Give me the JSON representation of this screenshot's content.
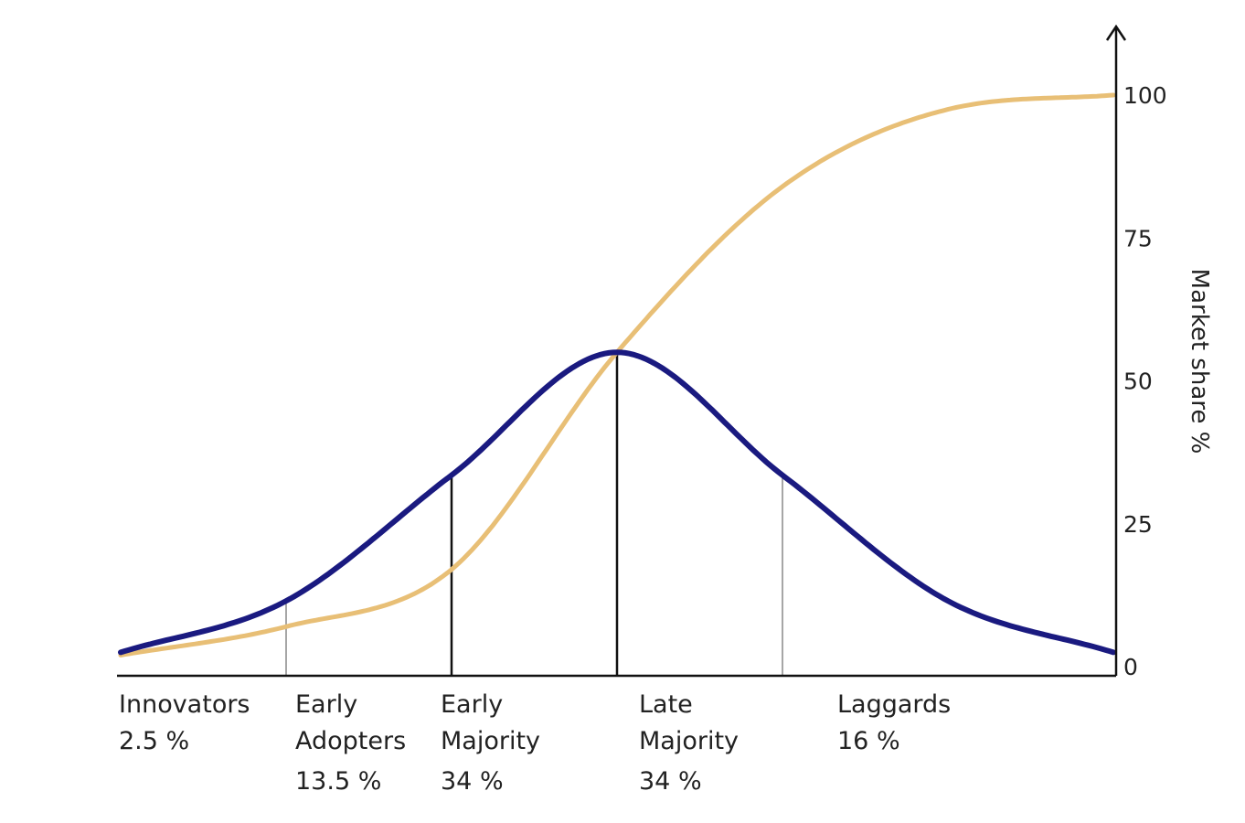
{
  "chart_data": {
    "type": "line",
    "title": "",
    "xlabel": "",
    "ylabel": "Market share %",
    "ylim": [
      0,
      100
    ],
    "y_ticks": [
      0,
      25,
      50,
      75,
      100
    ],
    "grid": false,
    "series": [
      {
        "kind": "adoption-curve",
        "color": "#1a1a80",
        "x": [
          -3.0,
          -2.0,
          -1.0,
          0.0,
          1.0,
          2.0,
          3.0
        ],
        "values": [
          2.5,
          11.5,
          33.5,
          55.0,
          33.5,
          11.5,
          2.5
        ]
      },
      {
        "kind": "cumulative-curve",
        "color": "#e8bf76",
        "x": [
          -3.0,
          -2.0,
          -1.0,
          0.0,
          1.0,
          2.0,
          3.0
        ],
        "values": [
          2.0,
          7.0,
          17.0,
          55.0,
          84.0,
          97.5,
          100.0
        ]
      }
    ],
    "segments": [
      {
        "lines": [
          "Innovators",
          "2.5 %"
        ],
        "share": 2.5,
        "from": -3.0,
        "to": -2.0
      },
      {
        "lines": [
          "Early",
          "Adopters",
          "13.5 %"
        ],
        "share": 13.5,
        "from": -2.0,
        "to": -1.0
      },
      {
        "lines": [
          "Early",
          "Majority",
          "34 %"
        ],
        "share": 34,
        "from": -1.0,
        "to": 0.0
      },
      {
        "lines": [
          "Late",
          "Majority",
          "34 %"
        ],
        "share": 34,
        "from": 0.0,
        "to": 1.0
      },
      {
        "lines": [
          "Laggards",
          "16 %"
        ],
        "share": 16,
        "from": 1.0,
        "to": 3.0
      }
    ]
  }
}
